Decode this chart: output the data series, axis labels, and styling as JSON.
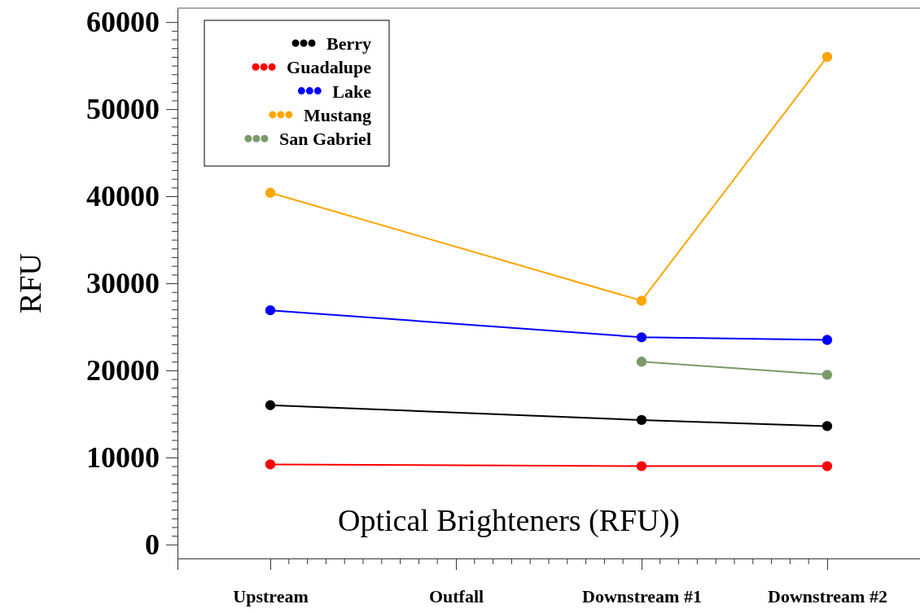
{
  "chart_data": {
    "type": "line",
    "title": "Optical Brighteners (RFU))",
    "ylabel": "RFU",
    "categories": [
      "Upstream",
      "Outfall",
      "Downstream #1",
      "Downstream #2"
    ],
    "series": [
      {
        "name": "Berry",
        "color": "#000000",
        "values": [
          16000,
          null,
          14300,
          13600
        ]
      },
      {
        "name": "Guadalupe",
        "color": "#ff0000",
        "values": [
          9200,
          null,
          9000,
          9000
        ]
      },
      {
        "name": "Lake",
        "color": "#0000ff",
        "values": [
          26900,
          null,
          23800,
          23500
        ]
      },
      {
        "name": "Mustang",
        "color": "#ffa500",
        "values": [
          40400,
          null,
          28000,
          56000
        ]
      },
      {
        "name": "San Gabriel",
        "color": "#7a9a6a",
        "values": [
          null,
          null,
          21000,
          19500
        ]
      }
    ],
    "ylim": [
      -1600,
      61600
    ],
    "yticks": [
      0,
      {
        "value": 1000,
        "label": null
      },
      {
        "value": 2000,
        "label": null
      },
      {
        "value": 3000,
        "label": null
      },
      {
        "value": 4000,
        "label": null
      },
      {
        "value": 5000,
        "label": null
      },
      {
        "value": 6000,
        "label": null
      },
      {
        "value": 7000,
        "label": null
      },
      {
        "value": 8000,
        "label": null
      },
      {
        "value": 9000,
        "label": null
      },
      10000,
      {
        "value": 11000,
        "label": null
      },
      {
        "value": 12000,
        "label": null
      },
      {
        "value": 13000,
        "label": null
      },
      {
        "value": 14000,
        "label": null
      },
      {
        "value": 15000,
        "label": null
      },
      {
        "value": 16000,
        "label": null
      },
      {
        "value": 17000,
        "label": null
      },
      {
        "value": 18000,
        "label": null
      },
      {
        "value": 19000,
        "label": null
      },
      20000,
      {
        "value": 21000,
        "label": null
      },
      {
        "value": 22000,
        "label": null
      },
      {
        "value": 23000,
        "label": null
      },
      {
        "value": 24000,
        "label": null
      },
      {
        "value": 25000,
        "label": null
      },
      {
        "value": 26000,
        "label": null
      },
      {
        "value": 27000,
        "label": null
      },
      {
        "value": 28000,
        "label": null
      },
      {
        "value": 29000,
        "label": null
      },
      30000,
      {
        "value": 31000,
        "label": null
      },
      {
        "value": 32000,
        "label": null
      },
      {
        "value": 33000,
        "label": null
      },
      {
        "value": 34000,
        "label": null
      },
      {
        "value": 35000,
        "label": null
      },
      {
        "value": 36000,
        "label": null
      },
      {
        "value": 37000,
        "label": null
      },
      {
        "value": 38000,
        "label": null
      },
      {
        "value": 39000,
        "label": null
      },
      40000,
      {
        "value": 41000,
        "label": null
      },
      {
        "value": 42000,
        "label": null
      },
      {
        "value": 43000,
        "label": null
      },
      {
        "value": 44000,
        "label": null
      },
      {
        "value": 45000,
        "label": null
      },
      {
        "value": 46000,
        "label": null
      },
      {
        "value": 47000,
        "label": null
      },
      {
        "value": 48000,
        "label": null
      },
      {
        "value": 49000,
        "label": null
      },
      50000,
      {
        "value": 51000,
        "label": null
      },
      {
        "value": 52000,
        "label": null
      },
      {
        "value": 53000,
        "label": null
      },
      {
        "value": 54000,
        "label": null
      },
      {
        "value": 55000,
        "label": null
      },
      {
        "value": 56000,
        "label": null
      },
      {
        "value": 57000,
        "label": null
      },
      {
        "value": 58000,
        "label": null
      },
      {
        "value": 59000,
        "label": null
      },
      60000
    ],
    "grid": false,
    "legend": "top left",
    "marker": "circle",
    "line_style": "solid"
  }
}
